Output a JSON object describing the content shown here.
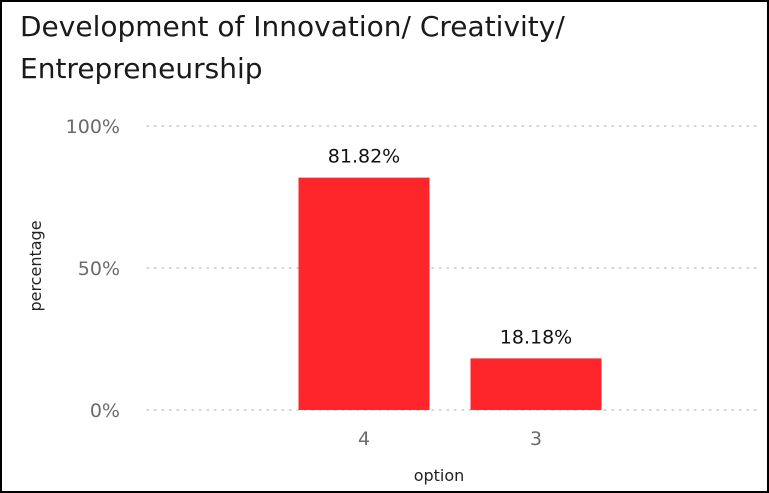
{
  "chart_data": {
    "type": "bar",
    "title": "Development of Innovation/ Creativity/ Entrepreneurship",
    "xlabel": "option",
    "ylabel": "percentage",
    "categories": [
      "4",
      "3"
    ],
    "values": [
      81.82,
      18.18
    ],
    "data_labels": [
      "81.82%",
      "18.18%"
    ],
    "y_ticks": [
      0,
      50,
      100
    ],
    "y_tick_labels": [
      "0%",
      "50%",
      "100%"
    ],
    "ylim": [
      0,
      100
    ],
    "grid": "dotted horizontal",
    "bar_color": "#ff262b",
    "legend": "none"
  }
}
